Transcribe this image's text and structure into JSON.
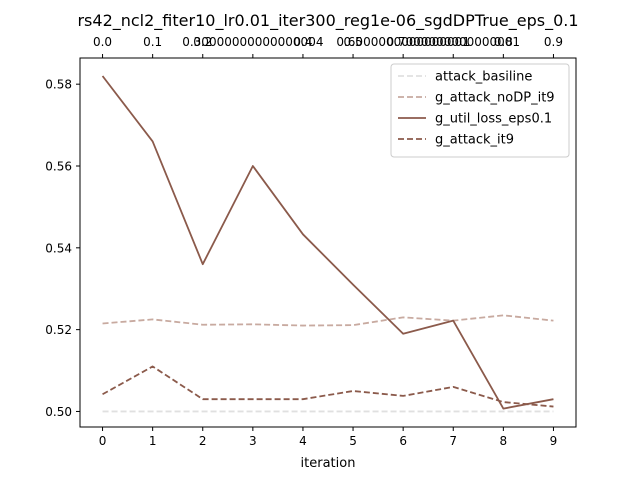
{
  "chart_data": {
    "type": "line",
    "title": "rs42_ncl2_fiter10_lr0.01_iter300_reg1e-06_sgdDPTrue_eps_0.1",
    "xlabel": "iteration",
    "ylabel": "",
    "x": [
      0,
      1,
      2,
      3,
      4,
      5,
      6,
      7,
      8,
      9
    ],
    "x_ticks": [
      "0",
      "1",
      "2",
      "3",
      "4",
      "5",
      "6",
      "7",
      "8",
      "9"
    ],
    "top_x_ticks": [
      "0.0",
      "0.1",
      "0.2",
      "0.30000000000000004",
      "0.4",
      "0.5",
      "0.6000000000000001",
      "0.7000000000000001",
      "0.8",
      "0.9"
    ],
    "xlim": [
      -0.45,
      9.45
    ],
    "ylim": [
      0.4962,
      0.5864
    ],
    "y_ticks": [
      0.5,
      0.52,
      0.54,
      0.56,
      0.58
    ],
    "y_tick_labels": [
      "0.50",
      "0.52",
      "0.54",
      "0.56",
      "0.58"
    ],
    "grid": false,
    "legend_position": "top-right",
    "series": [
      {
        "name": "attack_basiline",
        "color": "#e0e0e0",
        "dash": "dashed",
        "values": [
          0.5,
          0.5,
          0.5,
          0.5,
          0.5,
          0.5,
          0.5,
          0.5,
          0.5,
          0.5
        ]
      },
      {
        "name": "g_attack_noDP_it9",
        "color": "#c8aaa0",
        "dash": "dashed",
        "values": [
          0.5215,
          0.5225,
          0.5212,
          0.5213,
          0.521,
          0.5211,
          0.523,
          0.5222,
          0.5235,
          0.5222
        ]
      },
      {
        "name": "g_util_loss_eps0.1",
        "color": "#8b5a4b",
        "dash": "solid",
        "values": [
          0.582,
          0.566,
          0.536,
          0.56,
          0.5433,
          0.531,
          0.519,
          0.5222,
          0.5007,
          0.503
        ]
      },
      {
        "name": "g_attack_it9",
        "color": "#8b5a4b",
        "dash": "dashed",
        "values": [
          0.5042,
          0.511,
          0.503,
          0.503,
          0.503,
          0.505,
          0.5038,
          0.506,
          0.5023,
          0.5012
        ]
      }
    ]
  }
}
